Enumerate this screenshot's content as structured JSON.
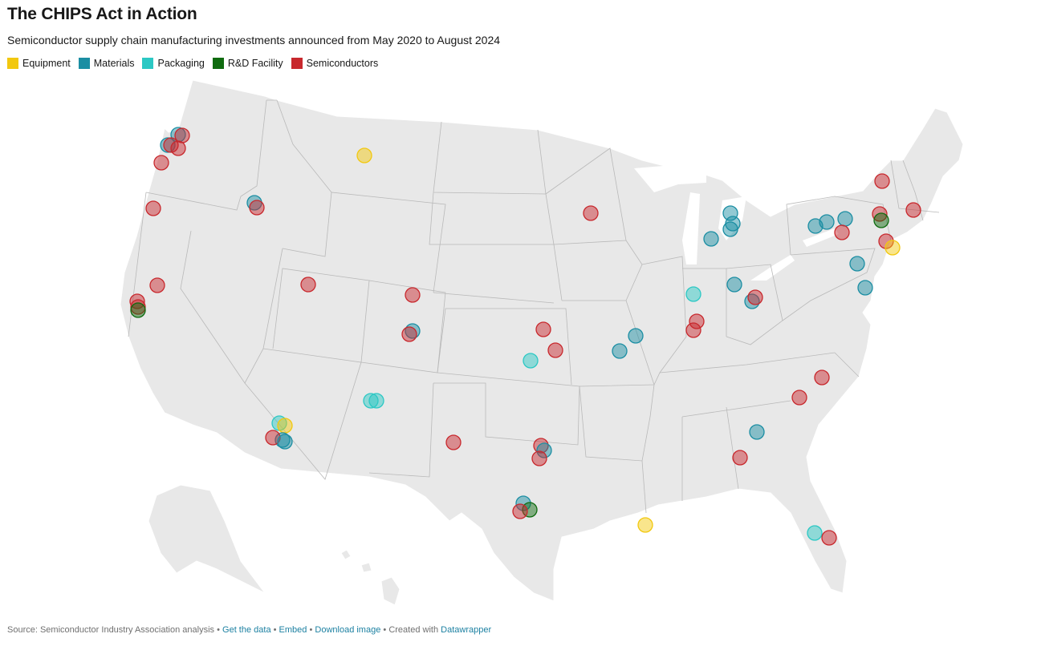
{
  "header": {
    "title": "The CHIPS Act in Action",
    "subtitle": "Semiconductor supply chain manufacturing investments announced from May 2020 to August 2024"
  },
  "legend": [
    {
      "key": "equipment",
      "label": "Equipment",
      "color": "#f2c80f"
    },
    {
      "key": "materials",
      "label": "Materials",
      "color": "#1b8ea3"
    },
    {
      "key": "packaging",
      "label": "Packaging",
      "color": "#2cc8c4"
    },
    {
      "key": "rd",
      "label": "R&D Facility",
      "color": "#0f6b0f"
    },
    {
      "key": "semis",
      "label": "Semiconductors",
      "color": "#c8282d"
    }
  ],
  "map": {
    "projection": "Albers USA",
    "investments": [
      {
        "state": "WA",
        "category": "materials"
      },
      {
        "state": "WA",
        "category": "materials"
      },
      {
        "state": "WA",
        "category": "semis"
      },
      {
        "state": "WA",
        "category": "semis"
      },
      {
        "state": "WA",
        "category": "semis"
      },
      {
        "state": "OR",
        "category": "semis"
      },
      {
        "state": "OR",
        "category": "semis"
      },
      {
        "state": "ID",
        "category": "materials"
      },
      {
        "state": "ID",
        "category": "semis"
      },
      {
        "state": "MT",
        "category": "equipment"
      },
      {
        "state": "CA",
        "category": "semis"
      },
      {
        "state": "CA",
        "category": "semis"
      },
      {
        "state": "CA",
        "category": "semis"
      },
      {
        "state": "CA",
        "category": "rd"
      },
      {
        "state": "UT",
        "category": "semis"
      },
      {
        "state": "CO",
        "category": "semis"
      },
      {
        "state": "CO",
        "category": "materials"
      },
      {
        "state": "CO",
        "category": "semis"
      },
      {
        "state": "AZ",
        "category": "packaging"
      },
      {
        "state": "AZ",
        "category": "equipment"
      },
      {
        "state": "AZ",
        "category": "materials"
      },
      {
        "state": "AZ",
        "category": "semis"
      },
      {
        "state": "AZ",
        "category": "materials"
      },
      {
        "state": "NM",
        "category": "packaging"
      },
      {
        "state": "NM",
        "category": "packaging"
      },
      {
        "state": "TX",
        "category": "semis"
      },
      {
        "state": "TX",
        "category": "semis"
      },
      {
        "state": "TX",
        "category": "materials"
      },
      {
        "state": "TX",
        "category": "semis"
      },
      {
        "state": "TX",
        "category": "materials"
      },
      {
        "state": "TX",
        "category": "rd"
      },
      {
        "state": "TX",
        "category": "semis"
      },
      {
        "state": "KS",
        "category": "semis"
      },
      {
        "state": "KS",
        "category": "semis"
      },
      {
        "state": "KS",
        "category": "packaging"
      },
      {
        "state": "MO",
        "category": "materials"
      },
      {
        "state": "MO",
        "category": "materials"
      },
      {
        "state": "WI",
        "category": "semis"
      },
      {
        "state": "MI",
        "category": "materials"
      },
      {
        "state": "MI",
        "category": "materials"
      },
      {
        "state": "MI",
        "category": "materials"
      },
      {
        "state": "MI",
        "category": "materials"
      },
      {
        "state": "IN",
        "category": "packaging"
      },
      {
        "state": "IN",
        "category": "semis"
      },
      {
        "state": "IN",
        "category": "semis"
      },
      {
        "state": "OH",
        "category": "materials"
      },
      {
        "state": "OH",
        "category": "materials"
      },
      {
        "state": "OH",
        "category": "semis"
      },
      {
        "state": "NY",
        "category": "semis"
      },
      {
        "state": "NY",
        "category": "materials"
      },
      {
        "state": "NY",
        "category": "materials"
      },
      {
        "state": "NY",
        "category": "materials"
      },
      {
        "state": "NY",
        "category": "semis"
      },
      {
        "state": "NY",
        "category": "semis"
      },
      {
        "state": "NY",
        "category": "rd"
      },
      {
        "state": "NY",
        "category": "semis"
      },
      {
        "state": "MA",
        "category": "semis"
      },
      {
        "state": "NJ",
        "category": "equipment"
      },
      {
        "state": "PA",
        "category": "materials"
      },
      {
        "state": "MD",
        "category": "materials"
      },
      {
        "state": "NC",
        "category": "semis"
      },
      {
        "state": "NC",
        "category": "semis"
      },
      {
        "state": "SC",
        "category": "materials"
      },
      {
        "state": "GA",
        "category": "semis"
      },
      {
        "state": "LA",
        "category": "equipment"
      },
      {
        "state": "FL",
        "category": "packaging"
      },
      {
        "state": "FL",
        "category": "semis"
      }
    ]
  },
  "footer": {
    "source": "Source: Semiconductor Industry Association analysis",
    "sep": "•",
    "get_data": "Get the data",
    "embed": "Embed",
    "download": "Download image",
    "created": "Created with",
    "datawrapper": "Datawrapper"
  }
}
